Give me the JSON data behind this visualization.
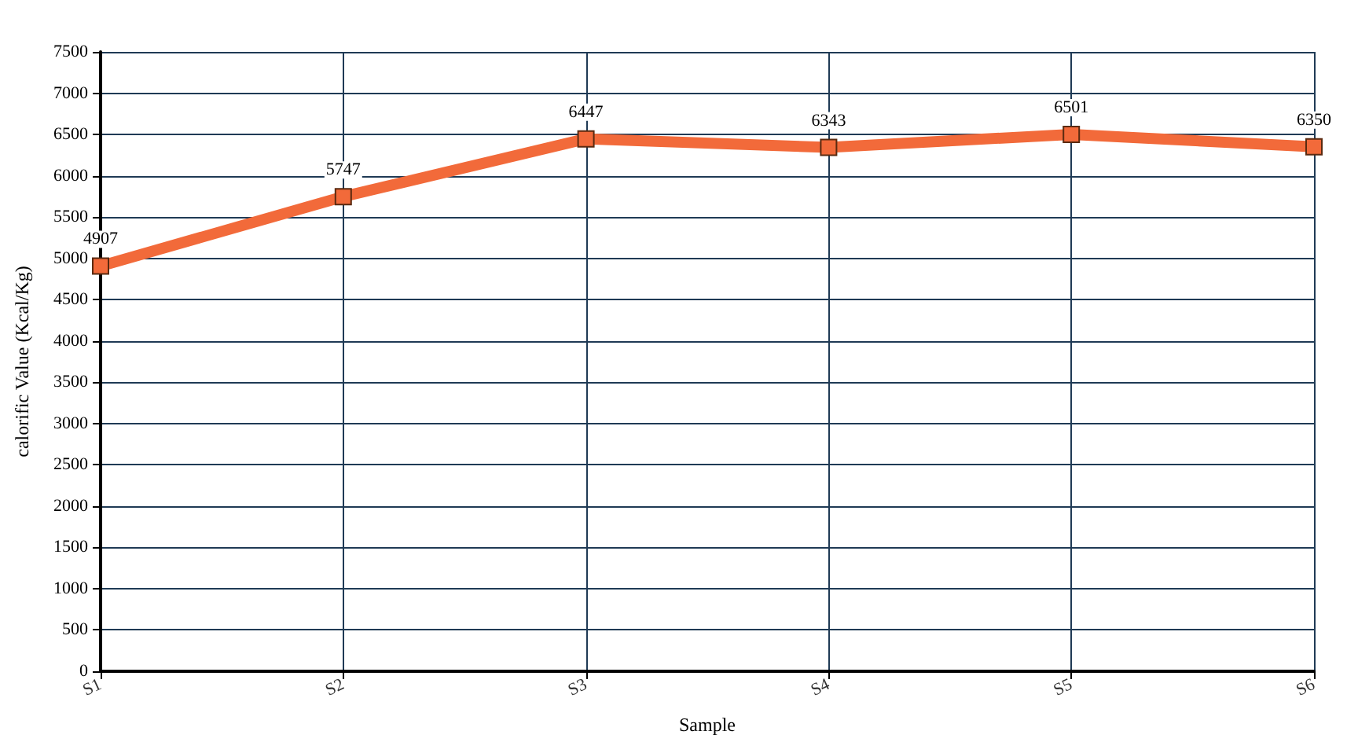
{
  "chart_data": {
    "type": "line",
    "xlabel": "Sample",
    "ylabel": "calorific Value (Kcal/Kg)",
    "categories": [
      "S1",
      "S2",
      "S3",
      "S4",
      "S5",
      "S6"
    ],
    "series": [
      {
        "color": "#f26a3a",
        "values": [
          4907,
          5747,
          6447,
          6343,
          6501,
          6350
        ]
      }
    ],
    "ylim": [
      0,
      7500
    ],
    "yticks": [
      0,
      500,
      1000,
      1500,
      2000,
      2500,
      3000,
      3500,
      4000,
      4500,
      5000,
      5500,
      6000,
      6500,
      7000,
      7500
    ],
    "grid": true,
    "marker": "square",
    "line_style": "solid",
    "data_labels": true
  }
}
